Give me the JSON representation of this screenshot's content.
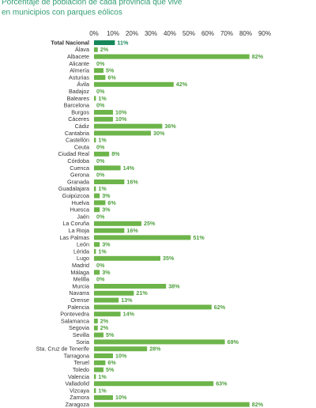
{
  "chart_data": {
    "type": "hbar",
    "title_lines": [
      "Porcentaje de población de cada provincia que vive",
      "en municipios con parques eólicos"
    ],
    "categories": [
      "Total Nacional",
      "Álava",
      "Albacete",
      "Alicante",
      "Almería",
      "Asturias",
      "Ávila",
      "Badajoz",
      "Baleares",
      "Barcelona",
      "Burgos",
      "Cáceres",
      "Cádiz",
      "Cantabria",
      "Castellón",
      "Ceuta",
      "Ciudad Real",
      "Córdoba",
      "Cuenca",
      "Gerona",
      "Granada",
      "Guadalajara",
      "Guipúzcoa",
      "Huelva",
      "Huesca",
      "Jaén",
      "La Coruña",
      "La Rioja",
      "Las Palmas",
      "León",
      "Lérida",
      "Lugo",
      "Madrid",
      "Málaga",
      "Melilla",
      "Murcia",
      "Navarra",
      "Orense",
      "Palencia",
      "Pontevedra",
      "Salamanca",
      "Segovia",
      "Sevilla",
      "Soria",
      "Sta. Cruz de Tenerife",
      "Tarragona",
      "Teruel",
      "Toledo",
      "Valencia",
      "Valladolid",
      "Vizcaya",
      "Zamora",
      "Zaragoza"
    ],
    "values": [
      11,
      2,
      82,
      0,
      5,
      6,
      42,
      0,
      1,
      0,
      10,
      10,
      36,
      30,
      1,
      0,
      8,
      0,
      14,
      0,
      16,
      1,
      3,
      6,
      3,
      0,
      25,
      16,
      51,
      3,
      1,
      35,
      0,
      3,
      0,
      38,
      21,
      13,
      62,
      14,
      2,
      2,
      5,
      69,
      28,
      10,
      6,
      5,
      1,
      63,
      1,
      10,
      82
    ],
    "value_labels": [
      "11%",
      "2%",
      "82%",
      "0%",
      "5%",
      "6%",
      "42%",
      "0%",
      "1%",
      "0%",
      "10%",
      "10%",
      "36%",
      "30%",
      "1%",
      "0%",
      "8%",
      "0%",
      "14%",
      "0%",
      "16%",
      "1%",
      "3%",
      "6%",
      "3%",
      "0%",
      "25%",
      "16%",
      "51%",
      "3%",
      "1%",
      "35%",
      "0%",
      "3%",
      "0%",
      "38%",
      "21%",
      "13%",
      "62%",
      "14%",
      "2%",
      "2%",
      "5%",
      "69%",
      "28%",
      "10%",
      "6%",
      "5%",
      "1%",
      "63%",
      "1%",
      "10%",
      "82%"
    ],
    "colors": [
      "#16875a",
      "#6db54a",
      "#6db54a",
      "#6db54a",
      "#6db54a",
      "#6db54a",
      "#6db54a",
      "#6db54a",
      "#6db54a",
      "#6db54a",
      "#6db54a",
      "#6db54a",
      "#6db54a",
      "#6db54a",
      "#6db54a",
      "#6db54a",
      "#6db54a",
      "#6db54a",
      "#6db54a",
      "#6db54a",
      "#6db54a",
      "#6db54a",
      "#6db54a",
      "#6db54a",
      "#6db54a",
      "#6db54a",
      "#6db54a",
      "#6db54a",
      "#6db54a",
      "#6db54a",
      "#6db54a",
      "#6db54a",
      "#6db54a",
      "#6db54a",
      "#6db54a",
      "#6db54a",
      "#6db54a",
      "#6db54a",
      "#6db54a",
      "#6db54a",
      "#6db54a",
      "#6db54a",
      "#6db54a",
      "#6db54a",
      "#6db54a",
      "#6db54a",
      "#6db54a",
      "#6db54a",
      "#6db54a",
      "#6db54a",
      "#6db54a",
      "#6db54a",
      "#6db54a"
    ],
    "xlim": [
      0,
      90
    ],
    "xticks": [
      {
        "value": 0,
        "label": "0%"
      },
      {
        "value": 10,
        "label": "10%"
      },
      {
        "value": 20,
        "label": "20%"
      },
      {
        "value": 30,
        "label": "30%"
      },
      {
        "value": 40,
        "label": "40%"
      },
      {
        "value": 50,
        "label": "50%"
      },
      {
        "value": 60,
        "label": "60%"
      },
      {
        "value": 70,
        "label": "70%"
      },
      {
        "value": 80,
        "label": "80%"
      },
      {
        "value": 90,
        "label": "90%"
      }
    ]
  }
}
